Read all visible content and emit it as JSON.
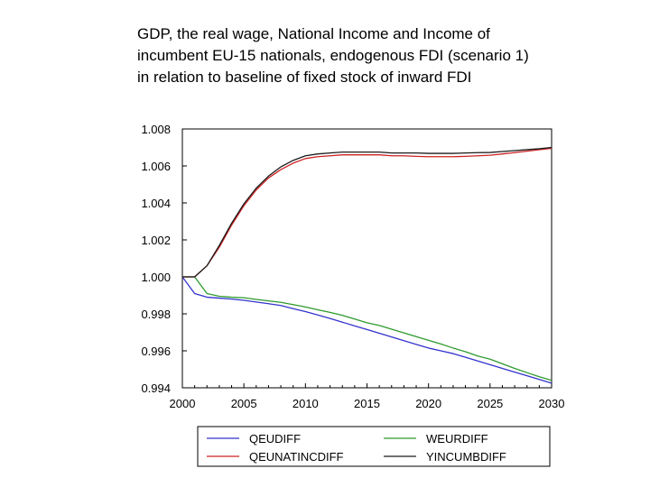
{
  "title_lines": [
    "GDP, the real wage, National Income and Income of",
    "incumbent EU-15 nationals, endogenous FDI (scenario 1)",
    "in relation to baseline of fixed stock of inward FDI"
  ],
  "chart_data": {
    "type": "line",
    "title": "GDP, the real wage, National Income and Income of incumbent EU-15 nationals, endogenous FDI (scenario 1) in relation to baseline of fixed stock of inward FDI",
    "xlabel": "",
    "ylabel": "",
    "xlim": [
      2000,
      2030
    ],
    "ylim": [
      0.994,
      1.008
    ],
    "x_ticks": [
      "2000",
      "2005",
      "2010",
      "2015",
      "2020",
      "2025",
      "2030"
    ],
    "y_ticks": [
      "0.994",
      "0.996",
      "0.998",
      "1.000",
      "1.002",
      "1.004",
      "1.006",
      "1.008"
    ],
    "grid": false,
    "legend_position": "bottom",
    "x": [
      2000,
      2001,
      2002,
      2003,
      2004,
      2005,
      2006,
      2007,
      2008,
      2009,
      2010,
      2011,
      2012,
      2013,
      2014,
      2015,
      2016,
      2017,
      2018,
      2019,
      2020,
      2021,
      2022,
      2023,
      2024,
      2025,
      2026,
      2027,
      2028,
      2029,
      2030
    ],
    "series": [
      {
        "name": "QEUDIFF",
        "color": "#3333cc",
        "values": [
          1.0,
          0.9991,
          0.9989,
          0.99885,
          0.9988,
          0.99873,
          0.99864,
          0.99855,
          0.99845,
          0.99828,
          0.99812,
          0.99794,
          0.99775,
          0.99755,
          0.99735,
          0.99715,
          0.99695,
          0.99675,
          0.99655,
          0.99635,
          0.99615,
          0.996,
          0.99585,
          0.99565,
          0.99545,
          0.99525,
          0.99505,
          0.99485,
          0.99465,
          0.99445,
          0.99425
        ]
      },
      {
        "name": "WEURDIFF",
        "color": "#2e9a2e",
        "values": [
          1.0,
          1.0,
          0.9991,
          0.99895,
          0.9989,
          0.99887,
          0.99878,
          0.9987,
          0.99862,
          0.9985,
          0.99837,
          0.99822,
          0.99808,
          0.99792,
          0.99772,
          0.99752,
          0.99737,
          0.99717,
          0.99697,
          0.99677,
          0.99657,
          0.99637,
          0.99615,
          0.99595,
          0.99572,
          0.99555,
          0.9953,
          0.99505,
          0.99482,
          0.9946,
          0.9944
        ]
      },
      {
        "name": "QEUNATINCDIFF",
        "color": "#cc2222",
        "values": [
          1.0,
          1.0,
          1.0006,
          1.0016,
          1.0028,
          1.00385,
          1.0047,
          1.00535,
          1.0058,
          1.00615,
          1.0064,
          1.0065,
          1.00655,
          1.0066,
          1.0066,
          1.0066,
          1.0066,
          1.00655,
          1.00655,
          1.00652,
          1.0065,
          1.0065,
          1.0065,
          1.00652,
          1.00655,
          1.00658,
          1.00665,
          1.00672,
          1.0068,
          1.00688,
          1.00695
        ]
      },
      {
        "name": "YINCUMBDIFF",
        "color": "#1a1a1a",
        "values": [
          1.0,
          1.0,
          1.0006,
          1.0017,
          1.0029,
          1.00395,
          1.0048,
          1.00545,
          1.00595,
          1.0063,
          1.00655,
          1.00665,
          1.0067,
          1.00675,
          1.00675,
          1.00675,
          1.00675,
          1.0067,
          1.0067,
          1.0067,
          1.00668,
          1.00668,
          1.00668,
          1.0067,
          1.00672,
          1.00673,
          1.00678,
          1.00683,
          1.00688,
          1.00693,
          1.007
        ]
      }
    ]
  }
}
